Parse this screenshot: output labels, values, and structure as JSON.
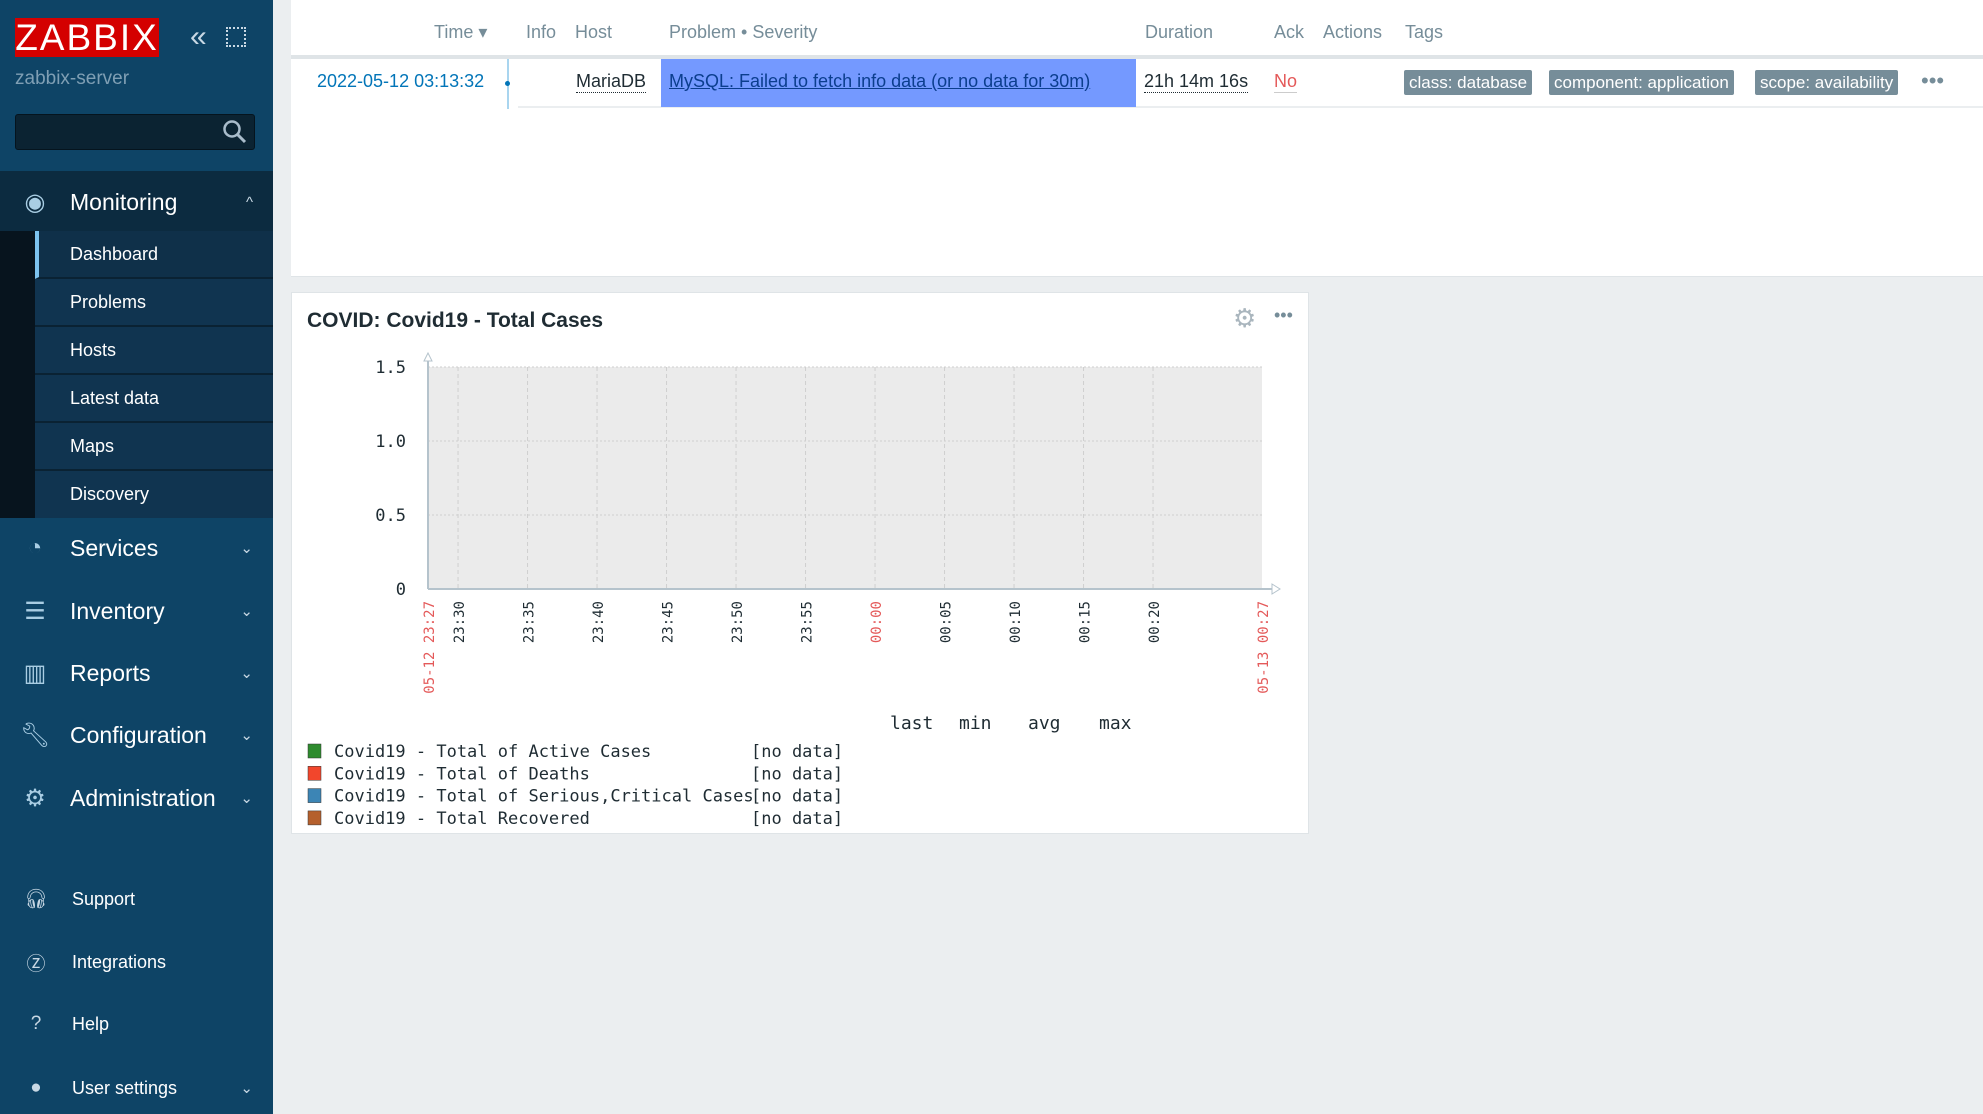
{
  "sidebar": {
    "logo": "ZABBIX",
    "server": "zabbix-server",
    "search_placeholder": "",
    "monitoring": "Monitoring",
    "submenu": [
      "Dashboard",
      "Problems",
      "Hosts",
      "Latest data",
      "Maps",
      "Discovery"
    ],
    "menu": [
      "Services",
      "Inventory",
      "Reports",
      "Configuration",
      "Administration"
    ],
    "footer": [
      "Support",
      "Integrations",
      "Help",
      "User settings"
    ]
  },
  "problems": {
    "headers": {
      "time": "Time ▾",
      "info": "Info",
      "host": "Host",
      "problem": "Problem • Severity",
      "duration": "Duration",
      "ack": "Ack",
      "actions": "Actions",
      "tags": "Tags"
    },
    "row": {
      "time": "2022-05-12 03:13:32",
      "host": "MariaDB",
      "problem": "MySQL: Failed to fetch info data (or no data for 30m)",
      "duration": "21h 14m 16s",
      "ack": "No",
      "tags": [
        "class: database",
        "component: application",
        "scope: availability"
      ]
    },
    "colors": {
      "highlight": "#7499ff",
      "ack_no": "#e45959",
      "link": "#0275b8"
    }
  },
  "graph": {
    "title": "COVID: Covid19 - Total Cases"
  },
  "chart_data": {
    "type": "line",
    "title": "COVID: Covid19 - Total Cases",
    "ylim": [
      0,
      1.5
    ],
    "y_ticks": [
      "1.5",
      "1.0",
      "0.5",
      "0"
    ],
    "x_start": "05-12 23:27",
    "x_end": "05-13 00:27",
    "x_ticks": [
      "23:30",
      "23:35",
      "23:40",
      "23:45",
      "23:50",
      "23:55",
      "00:00",
      "00:05",
      "00:10",
      "00:15",
      "00:20"
    ],
    "grid": true,
    "legend_placement": "bottom",
    "legend_columns": [
      "last",
      "min",
      "avg",
      "max"
    ],
    "series": [
      {
        "name": "Covid19 - Total of Active Cases",
        "color": "#2e8b2e",
        "status": "[no data]",
        "values": []
      },
      {
        "name": "Covid19 - Total of Deaths",
        "color": "#f2462c",
        "status": "[no data]",
        "values": []
      },
      {
        "name": "Covid19 - Total of Serious,Critical Cases",
        "color": "#3c85b5",
        "status": "[no data]",
        "values": []
      },
      {
        "name": "Covid19 - Total Recovered",
        "color": "#b5602d",
        "status": "[no data]",
        "values": []
      }
    ]
  }
}
